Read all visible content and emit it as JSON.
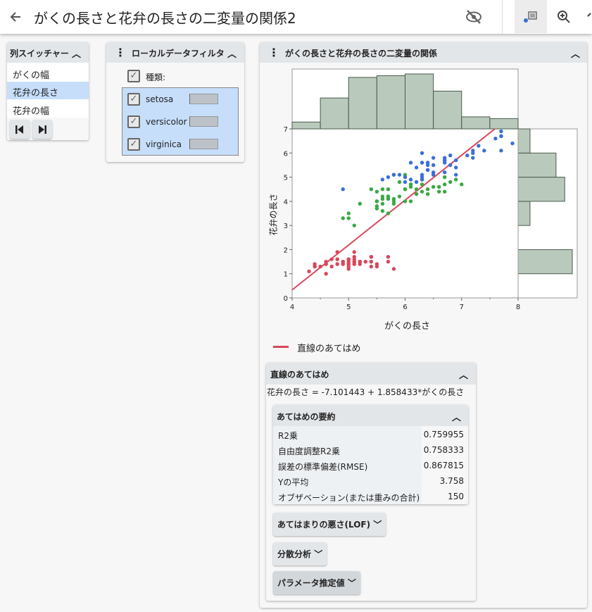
{
  "header": {
    "title": "がくの長さと花弁の長さの二変量の関係2",
    "back_icon": "arrow-left-icon",
    "hide_icon": "eye-off-icon",
    "annotate_icon": "annotate-icon",
    "zoom_icon": "zoom-in-icon"
  },
  "column_switcher": {
    "title": "列スイッチャー",
    "items": [
      "がくの幅",
      "花弁の長さ",
      "花弁の幅"
    ],
    "selected": "花弁の長さ"
  },
  "local_filter": {
    "title": "ローカルデータフィルタ",
    "group_label": "種類:",
    "items": [
      {
        "label": "setosa",
        "checked": true
      },
      {
        "label": "versicolor",
        "checked": true
      },
      {
        "label": "virginica",
        "checked": true
      }
    ]
  },
  "main": {
    "title": "がくの長さと花弁の長さの二変量の関係",
    "legend_label": "直線のあてはめ",
    "fit": {
      "title": "直線のあてはめ",
      "equation": "花弁の長さ = -7.101443 + 1.858433*がくの長さ",
      "summary": {
        "title": "あてはめの要約",
        "rows": [
          {
            "label": "R2乗",
            "value": "0.759955"
          },
          {
            "label": "自由度調整R2乗",
            "value": "0.758333"
          },
          {
            "label": "誤差の標準偏差(RMSE)",
            "value": "0.867815"
          },
          {
            "label": "Yの平均",
            "value": "3.758"
          },
          {
            "label": "オブザベーション(または重みの合計)",
            "value": "150"
          }
        ]
      },
      "collapsed": [
        "あてはまりの悪さ(LOF)",
        "分散分析",
        "パラメータ推定値"
      ]
    }
  },
  "chart_data": {
    "type": "scatter",
    "xlabel": "がくの長さ",
    "ylabel": "花弁の長さ",
    "xlim": [
      4,
      8
    ],
    "ylim": [
      0,
      7
    ],
    "xticks": [
      "4",
      "5",
      "6",
      "7",
      "8"
    ],
    "yticks": [
      "0",
      "1",
      "2",
      "3",
      "4",
      "5",
      "6",
      "7"
    ],
    "fit_line": {
      "intercept": -7.101443,
      "slope": 1.858433,
      "color": "#d9475a"
    },
    "series": [
      {
        "color": "#d9475a",
        "points": [
          [
            5.1,
            1.4
          ],
          [
            4.9,
            1.4
          ],
          [
            4.7,
            1.3
          ],
          [
            4.6,
            1.5
          ],
          [
            5.0,
            1.4
          ],
          [
            5.4,
            1.7
          ],
          [
            4.6,
            1.4
          ],
          [
            5.0,
            1.5
          ],
          [
            4.4,
            1.4
          ],
          [
            4.9,
            1.5
          ],
          [
            5.4,
            1.5
          ],
          [
            4.8,
            1.6
          ],
          [
            4.8,
            1.4
          ],
          [
            4.3,
            1.1
          ],
          [
            5.8,
            1.2
          ],
          [
            5.7,
            1.5
          ],
          [
            5.4,
            1.3
          ],
          [
            5.1,
            1.4
          ],
          [
            5.7,
            1.7
          ],
          [
            5.1,
            1.5
          ],
          [
            5.4,
            1.7
          ],
          [
            5.1,
            1.5
          ],
          [
            4.6,
            1.0
          ],
          [
            5.1,
            1.7
          ],
          [
            4.8,
            1.9
          ],
          [
            5.0,
            1.6
          ],
          [
            5.0,
            1.6
          ],
          [
            5.2,
            1.5
          ],
          [
            5.2,
            1.4
          ],
          [
            4.7,
            1.6
          ],
          [
            4.8,
            1.6
          ],
          [
            5.4,
            1.5
          ],
          [
            5.2,
            1.5
          ],
          [
            5.5,
            1.4
          ],
          [
            4.9,
            1.5
          ],
          [
            5.0,
            1.2
          ],
          [
            5.5,
            1.3
          ],
          [
            4.9,
            1.4
          ],
          [
            4.4,
            1.3
          ],
          [
            5.1,
            1.5
          ],
          [
            5.0,
            1.3
          ],
          [
            4.5,
            1.3
          ],
          [
            4.4,
            1.3
          ],
          [
            5.0,
            1.6
          ],
          [
            5.1,
            1.9
          ],
          [
            4.8,
            1.4
          ],
          [
            5.1,
            1.6
          ],
          [
            4.6,
            1.4
          ],
          [
            5.3,
            1.5
          ],
          [
            5.0,
            1.4
          ]
        ]
      },
      {
        "color": "#3aa845",
        "points": [
          [
            7.0,
            4.7
          ],
          [
            6.4,
            4.5
          ],
          [
            6.9,
            4.9
          ],
          [
            5.5,
            4.0
          ],
          [
            6.5,
            4.6
          ],
          [
            5.7,
            4.5
          ],
          [
            6.3,
            4.7
          ],
          [
            4.9,
            3.3
          ],
          [
            6.6,
            4.6
          ],
          [
            5.2,
            3.9
          ],
          [
            5.0,
            3.5
          ],
          [
            5.9,
            4.2
          ],
          [
            6.0,
            4.0
          ],
          [
            6.1,
            4.7
          ],
          [
            5.6,
            3.6
          ],
          [
            6.7,
            4.4
          ],
          [
            5.6,
            4.5
          ],
          [
            5.8,
            4.1
          ],
          [
            6.2,
            4.5
          ],
          [
            5.6,
            3.9
          ],
          [
            5.9,
            4.8
          ],
          [
            6.1,
            4.0
          ],
          [
            6.3,
            4.9
          ],
          [
            6.1,
            4.7
          ],
          [
            6.4,
            4.3
          ],
          [
            6.6,
            4.4
          ],
          [
            6.8,
            4.8
          ],
          [
            6.7,
            5.0
          ],
          [
            6.0,
            4.5
          ],
          [
            5.7,
            3.5
          ],
          [
            5.5,
            3.8
          ],
          [
            5.5,
            3.7
          ],
          [
            5.8,
            3.9
          ],
          [
            6.0,
            5.1
          ],
          [
            5.4,
            4.5
          ],
          [
            6.0,
            4.5
          ],
          [
            6.7,
            4.7
          ],
          [
            6.3,
            4.4
          ],
          [
            5.6,
            4.1
          ],
          [
            5.5,
            4.0
          ],
          [
            5.5,
            4.4
          ],
          [
            6.1,
            4.6
          ],
          [
            5.8,
            4.0
          ],
          [
            5.0,
            3.3
          ],
          [
            5.6,
            4.2
          ],
          [
            5.7,
            4.2
          ],
          [
            5.7,
            4.2
          ],
          [
            6.2,
            4.3
          ],
          [
            5.1,
            3.0
          ],
          [
            5.7,
            4.1
          ]
        ]
      },
      {
        "color": "#3b6fd8",
        "points": [
          [
            6.3,
            6.0
          ],
          [
            5.8,
            5.1
          ],
          [
            7.1,
            5.9
          ],
          [
            6.3,
            5.6
          ],
          [
            6.5,
            5.8
          ],
          [
            7.6,
            6.6
          ],
          [
            4.9,
            4.5
          ],
          [
            7.3,
            6.3
          ],
          [
            6.7,
            5.8
          ],
          [
            7.2,
            6.1
          ],
          [
            6.5,
            5.1
          ],
          [
            6.4,
            5.3
          ],
          [
            6.8,
            5.5
          ],
          [
            5.7,
            5.0
          ],
          [
            5.8,
            5.1
          ],
          [
            6.4,
            5.3
          ],
          [
            6.5,
            5.5
          ],
          [
            7.7,
            6.7
          ],
          [
            7.7,
            6.9
          ],
          [
            6.0,
            5.0
          ],
          [
            6.9,
            5.7
          ],
          [
            5.6,
            4.9
          ],
          [
            7.7,
            6.7
          ],
          [
            6.3,
            4.9
          ],
          [
            6.7,
            5.7
          ],
          [
            7.2,
            6.0
          ],
          [
            6.2,
            4.8
          ],
          [
            6.1,
            4.9
          ],
          [
            6.4,
            5.6
          ],
          [
            7.2,
            5.8
          ],
          [
            7.4,
            6.1
          ],
          [
            7.9,
            6.4
          ],
          [
            6.4,
            5.6
          ],
          [
            6.3,
            5.1
          ],
          [
            6.1,
            5.6
          ],
          [
            7.7,
            6.1
          ],
          [
            6.3,
            5.6
          ],
          [
            6.4,
            5.5
          ],
          [
            6.0,
            4.8
          ],
          [
            6.9,
            5.4
          ],
          [
            6.7,
            5.6
          ],
          [
            6.9,
            5.1
          ],
          [
            5.8,
            5.1
          ],
          [
            6.8,
            5.9
          ],
          [
            6.7,
            5.7
          ],
          [
            6.7,
            5.2
          ],
          [
            6.3,
            5.0
          ],
          [
            6.5,
            5.2
          ],
          [
            6.2,
            5.4
          ],
          [
            5.9,
            5.1
          ]
        ]
      }
    ],
    "hist_color": "#b9c9bb"
  }
}
